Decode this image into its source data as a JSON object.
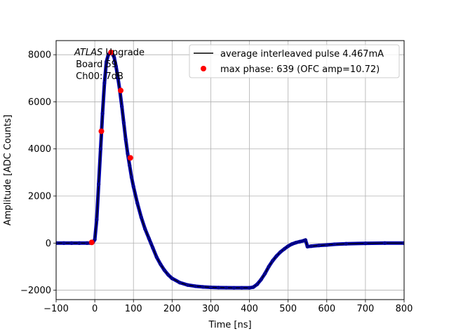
{
  "chart_data": {
    "type": "scatter",
    "xlabel": "Time [ns]",
    "ylabel": "Amplitude [ADC Counts]",
    "xlim": [
      -100,
      800
    ],
    "ylim": [
      -2400,
      8600
    ],
    "xticks": [
      -100,
      0,
      100,
      200,
      300,
      400,
      500,
      600,
      700,
      800
    ],
    "yticks": [
      -2000,
      0,
      2000,
      4000,
      6000,
      8000
    ],
    "xtick_labels": [
      "−100",
      "0",
      "100",
      "200",
      "300",
      "400",
      "500",
      "600",
      "700",
      "800"
    ],
    "ytick_labels": [
      "−2000",
      "0",
      "2000",
      "4000",
      "6000",
      "8000"
    ],
    "grid": true,
    "annotation": {
      "line1_italic": "ATLAS",
      "line1_rest": " Upgrade",
      "line2": " Board 59",
      "line3": " Ch00: 7dB"
    },
    "legend": {
      "placement": "top-right",
      "entries": [
        {
          "label": "average interleaved pulse 4.467mA",
          "marker": "line",
          "color": "#000000"
        },
        {
          "label": "max phase: 639 (OFC amp=10.72)",
          "marker": "dot",
          "color": "#ff0000"
        }
      ]
    },
    "series": [
      {
        "name": "average interleaved pulse 4.467mA",
        "color": "#00008b",
        "style": "dots-with-line",
        "x": [
          -100,
          -80,
          -60,
          -40,
          -20,
          -10,
          -5,
          0,
          5,
          10,
          15,
          20,
          25,
          30,
          35,
          40,
          45,
          50,
          55,
          60,
          65,
          70,
          75,
          80,
          85,
          90,
          95,
          100,
          110,
          120,
          130,
          140,
          145,
          150,
          160,
          170,
          180,
          190,
          200,
          220,
          240,
          260,
          280,
          300,
          320,
          340,
          360,
          380,
          400,
          410,
          420,
          430,
          440,
          450,
          460,
          470,
          480,
          490,
          500,
          510,
          520,
          530,
          540,
          545,
          550,
          560,
          580,
          600,
          620,
          650,
          700,
          750,
          800
        ],
        "y": [
          0,
          0,
          0,
          0,
          0,
          0,
          20,
          150,
          1000,
          2500,
          4000,
          5500,
          6800,
          7700,
          8000,
          8100,
          8050,
          7900,
          7500,
          7000,
          6450,
          5800,
          5100,
          4400,
          3800,
          3300,
          2800,
          2400,
          1700,
          1100,
          600,
          200,
          0,
          -200,
          -600,
          -900,
          -1150,
          -1350,
          -1500,
          -1680,
          -1780,
          -1830,
          -1860,
          -1880,
          -1890,
          -1895,
          -1900,
          -1900,
          -1900,
          -1870,
          -1750,
          -1550,
          -1300,
          -1000,
          -750,
          -550,
          -380,
          -250,
          -130,
          -40,
          20,
          60,
          100,
          130,
          -150,
          -130,
          -100,
          -80,
          -50,
          -30,
          -10,
          0,
          0
        ]
      },
      {
        "name": "max phase: 639 (OFC amp=10.72)",
        "color": "#ff0000",
        "style": "dots",
        "x": [
          -8,
          17,
          42,
          67,
          92
        ],
        "y": [
          30,
          4750,
          8100,
          6480,
          3620
        ]
      }
    ]
  }
}
